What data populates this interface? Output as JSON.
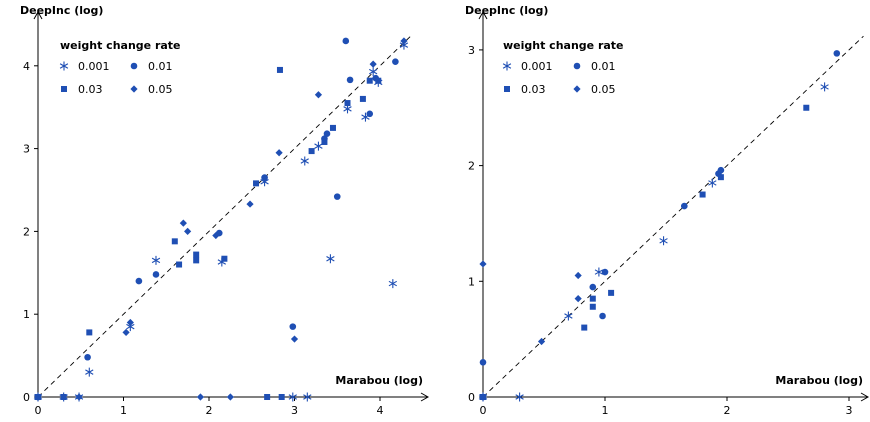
{
  "chart_data": [
    {
      "type": "scatter",
      "xlabel": "Marabou (log)",
      "ylabel": "DeepInc (log)",
      "xlim": [
        0,
        4.4
      ],
      "ylim": [
        0,
        4.6
      ],
      "xticks": [
        "0",
        "1",
        "2",
        "3",
        "4"
      ],
      "yticks": [
        "0",
        "1",
        "2",
        "3",
        "4"
      ],
      "legend": {
        "title": "weight change rate",
        "placement": "top-left",
        "entries": [
          {
            "label": "0.001",
            "marker": "star"
          },
          {
            "label": "0.01",
            "marker": "circle"
          },
          {
            "label": "0.03",
            "marker": "square"
          },
          {
            "label": "0.05",
            "marker": "diamond"
          }
        ]
      },
      "diagonal": true,
      "series": [
        {
          "marker": "star",
          "points": [
            [
              0,
              0
            ],
            [
              0.3,
              0
            ],
            [
              0.48,
              0
            ],
            [
              0.6,
              0.3
            ],
            [
              1.08,
              0.85
            ],
            [
              1.38,
              1.65
            ],
            [
              2.15,
              1.63
            ],
            [
              2.65,
              2.6
            ],
            [
              2.98,
              0
            ],
            [
              3.15,
              0
            ],
            [
              3.12,
              2.85
            ],
            [
              3.28,
              3.03
            ],
            [
              3.42,
              1.67
            ],
            [
              3.62,
              3.48
            ],
            [
              3.83,
              3.38
            ],
            [
              3.92,
              3.93
            ],
            [
              3.98,
              3.8
            ],
            [
              4.15,
              1.37
            ],
            [
              4.28,
              4.25
            ]
          ]
        },
        {
          "marker": "circle",
          "points": [
            [
              0,
              0
            ],
            [
              0.58,
              0.48
            ],
            [
              1.18,
              1.4
            ],
            [
              1.38,
              1.48
            ],
            [
              2.12,
              1.98
            ],
            [
              2.65,
              2.65
            ],
            [
              2.98,
              0.85
            ],
            [
              3.35,
              3.12
            ],
            [
              3.38,
              3.18
            ],
            [
              3.5,
              2.42
            ],
            [
              3.6,
              4.3
            ],
            [
              3.65,
              3.83
            ],
            [
              3.88,
              3.42
            ],
            [
              3.95,
              3.85
            ],
            [
              4.18,
              4.05
            ]
          ]
        },
        {
          "marker": "square",
          "points": [
            [
              0,
              0
            ],
            [
              0.3,
              0
            ],
            [
              0.6,
              0.78
            ],
            [
              1.6,
              1.88
            ],
            [
              1.65,
              1.6
            ],
            [
              1.85,
              1.72
            ],
            [
              1.85,
              1.65
            ],
            [
              2.18,
              1.67
            ],
            [
              2.55,
              2.58
            ],
            [
              2.68,
              0
            ],
            [
              2.83,
              3.95
            ],
            [
              2.85,
              0
            ],
            [
              3.2,
              2.97
            ],
            [
              3.35,
              3.08
            ],
            [
              3.45,
              3.25
            ],
            [
              3.62,
              3.55
            ],
            [
              3.8,
              3.6
            ],
            [
              3.88,
              3.82
            ],
            [
              3.98,
              3.82
            ]
          ]
        },
        {
          "marker": "diamond",
          "points": [
            [
              0,
              0
            ],
            [
              0.48,
              0
            ],
            [
              1.03,
              0.78
            ],
            [
              1.08,
              0.9
            ],
            [
              1.7,
              2.1
            ],
            [
              1.75,
              2.0
            ],
            [
              1.9,
              0
            ],
            [
              2.08,
              1.95
            ],
            [
              2.25,
              0
            ],
            [
              2.48,
              2.33
            ],
            [
              2.82,
              2.95
            ],
            [
              3.0,
              0.7
            ],
            [
              3.28,
              3.65
            ],
            [
              3.92,
              4.02
            ],
            [
              4.28,
              4.3
            ]
          ]
        }
      ]
    },
    {
      "type": "scatter",
      "xlabel": "Marabou (log)",
      "ylabel": "DeepInc (log)",
      "xlim": [
        0,
        3.15
      ],
      "ylim": [
        0,
        3.3
      ],
      "xticks": [
        "0",
        "1",
        "2",
        "3"
      ],
      "yticks": [
        "0",
        "1",
        "2",
        "3"
      ],
      "legend": {
        "title": "weight change rate",
        "placement": "top-left",
        "entries": [
          {
            "label": "0.001",
            "marker": "star"
          },
          {
            "label": "0.01",
            "marker": "circle"
          },
          {
            "label": "0.03",
            "marker": "square"
          },
          {
            "label": "0.05",
            "marker": "diamond"
          }
        ]
      },
      "diagonal": true,
      "series": [
        {
          "marker": "star",
          "points": [
            [
              0,
              0
            ],
            [
              0.3,
              0
            ],
            [
              0.7,
              0.7
            ],
            [
              0.95,
              1.08
            ],
            [
              1.48,
              1.35
            ],
            [
              1.88,
              1.85
            ],
            [
              2.8,
              2.68
            ]
          ]
        },
        {
          "marker": "circle",
          "points": [
            [
              0,
              0.3
            ],
            [
              0,
              0
            ],
            [
              0.9,
              0.95
            ],
            [
              0.98,
              0.7
            ],
            [
              1.0,
              1.08
            ],
            [
              1.65,
              1.65
            ],
            [
              1.93,
              1.93
            ],
            [
              1.95,
              1.96
            ],
            [
              2.9,
              2.97
            ]
          ]
        },
        {
          "marker": "square",
          "points": [
            [
              0,
              0
            ],
            [
              0.83,
              0.6
            ],
            [
              0.9,
              0.85
            ],
            [
              0.9,
              0.78
            ],
            [
              1.05,
              0.9
            ],
            [
              1.8,
              1.75
            ],
            [
              1.95,
              1.9
            ],
            [
              2.65,
              2.5
            ]
          ]
        },
        {
          "marker": "diamond",
          "points": [
            [
              0,
              1.15
            ],
            [
              0,
              0
            ],
            [
              0.48,
              0.48
            ],
            [
              0.78,
              1.05
            ],
            [
              0.78,
              0.85
            ]
          ]
        }
      ]
    }
  ],
  "colors": {
    "marker": "#1f4fb4",
    "axis": "#000000",
    "diagonal": "#000000"
  }
}
